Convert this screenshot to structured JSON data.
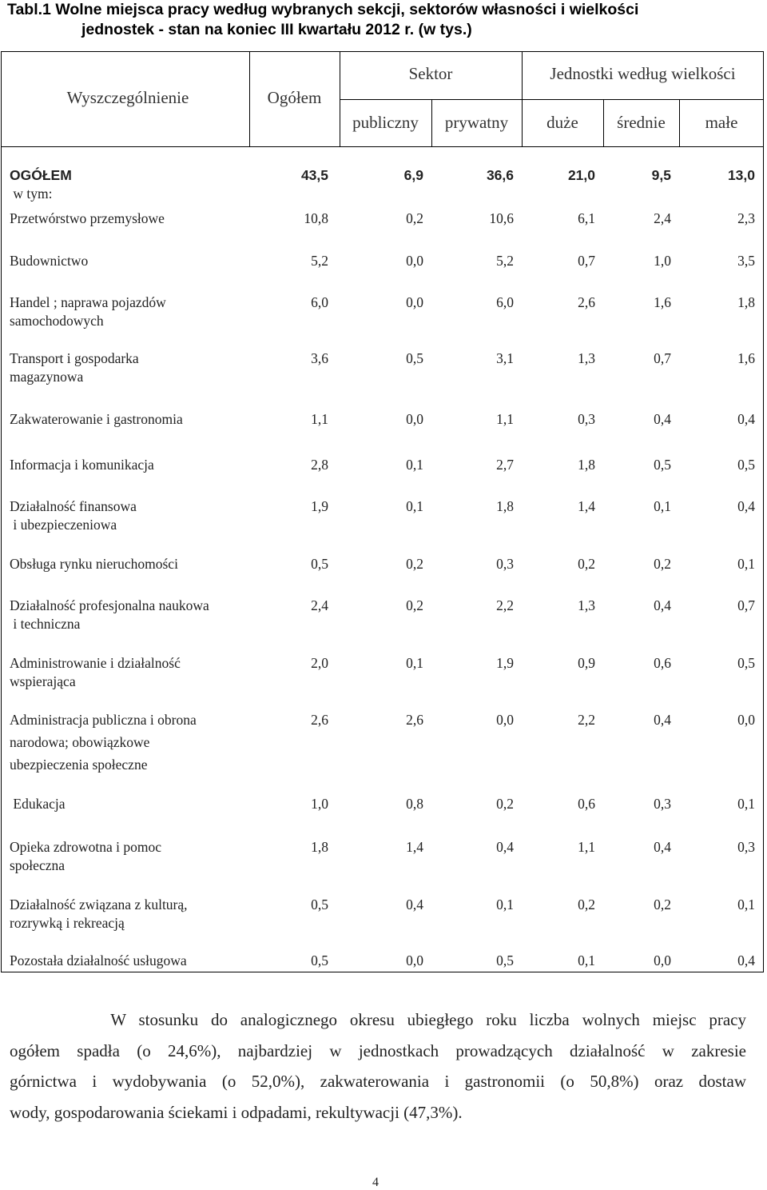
{
  "title": {
    "line1": "Tabl.1 Wolne miejsca pracy według wybranych sekcji, sektorów własności i wielkości",
    "line2": "jednostek - stan na koniec III kwartału 2012 r. (w tys.)"
  },
  "header": {
    "col_desc": "Wyszczególnienie",
    "col_total": "Ogółem",
    "group_sector": "Sektor",
    "group_size": "Jednostki według wielkości",
    "public": "publiczny",
    "private": "prywatny",
    "large": "duże",
    "medium": "średnie",
    "small": "małe"
  },
  "rows": [
    {
      "label": [
        "OGÓŁEM",
        " w tym:"
      ],
      "values": [
        "43,5",
        "6,9",
        "36,6",
        "21,0",
        "9,5",
        "13,0"
      ]
    },
    {
      "label": [
        "Przetwórstwo przemysłowe"
      ],
      "values": [
        "10,8",
        "0,2",
        "10,6",
        "6,1",
        "2,4",
        "2,3"
      ]
    },
    {
      "label": [
        "Budownictwo"
      ],
      "values": [
        "5,2",
        "0,0",
        "5,2",
        "0,7",
        "1,0",
        "3,5"
      ]
    },
    {
      "label": [
        "Handel ; naprawa pojazdów",
        "samochodowych"
      ],
      "values": [
        "6,0",
        "0,0",
        "6,0",
        "2,6",
        "1,6",
        "1,8"
      ]
    },
    {
      "label": [
        "Transport i gospodarka",
        "magazynowa"
      ],
      "values": [
        "3,6",
        "0,5",
        "3,1",
        "1,3",
        "0,7",
        "1,6"
      ]
    },
    {
      "label": [
        "Zakwaterowanie i gastronomia"
      ],
      "values": [
        "1,1",
        "0,0",
        "1,1",
        "0,3",
        "0,4",
        "0,4"
      ]
    },
    {
      "label": [
        "Informacja i komunikacja"
      ],
      "values": [
        "2,8",
        "0,1",
        "2,7",
        "1,8",
        "0,5",
        "0,5"
      ]
    },
    {
      "label": [
        "Działalność finansowa",
        " i ubezpieczeniowa"
      ],
      "values": [
        "1,9",
        "0,1",
        "1,8",
        "1,4",
        "0,1",
        "0,4"
      ]
    },
    {
      "label": [
        "Obsługa rynku nieruchomości"
      ],
      "values": [
        "0,5",
        "0,2",
        "0,3",
        "0,2",
        "0,2",
        "0,1"
      ]
    },
    {
      "label": [
        "Działalność profesjonalna naukowa",
        " i techniczna"
      ],
      "values": [
        "2,4",
        "0,2",
        "2,2",
        "1,3",
        "0,4",
        "0,7"
      ]
    },
    {
      "label": [
        "Administrowanie i działalność",
        "wspierająca"
      ],
      "values": [
        "2,0",
        "0,1",
        "1,9",
        "0,9",
        "0,6",
        "0,5"
      ]
    },
    {
      "label": [
        "Administracja publiczna i obrona",
        "narodowa; obowiązkowe",
        "ubezpieczenia społeczne"
      ],
      "values": [
        "2,6",
        "2,6",
        "0,0",
        "2,2",
        "0,4",
        "0,0"
      ]
    },
    {
      "label": [
        " Edukacja"
      ],
      "values": [
        "1,0",
        "0,8",
        "0,2",
        "0,6",
        "0,3",
        "0,1"
      ]
    },
    {
      "label": [
        "Opieka zdrowotna i pomoc",
        "społeczna"
      ],
      "values": [
        "1,8",
        "1,4",
        "0,4",
        "1,1",
        "0,4",
        "0,3"
      ]
    },
    {
      "label": [
        "Działalność związana z kulturą,",
        "rozrywką i rekreacją"
      ],
      "values": [
        "0,5",
        "0,4",
        "0,1",
        "0,2",
        "0,2",
        "0,1"
      ]
    },
    {
      "label": [
        "Pozostała działalność usługowa"
      ],
      "values": [
        "0,5",
        "0,0",
        "0,5",
        "0,1",
        "0,0",
        "0,4"
      ]
    }
  ],
  "paragraph": [
    "        W stosunku do analogicznego okresu ubiegłego roku liczba wolnych miejsc pracy",
    "ogółem spadła (o 24,6%), najbardziej w jednostkach prowadzących działalność w zakresie",
    "górnictwa i wydobywania (o 52,0%), zakwaterowania i gastronomii (o 50,8%) oraz dostaw",
    "wody, gospodarowania ściekami i odpadami, rekultywacji (47,3%)."
  ],
  "page_number": "4"
}
